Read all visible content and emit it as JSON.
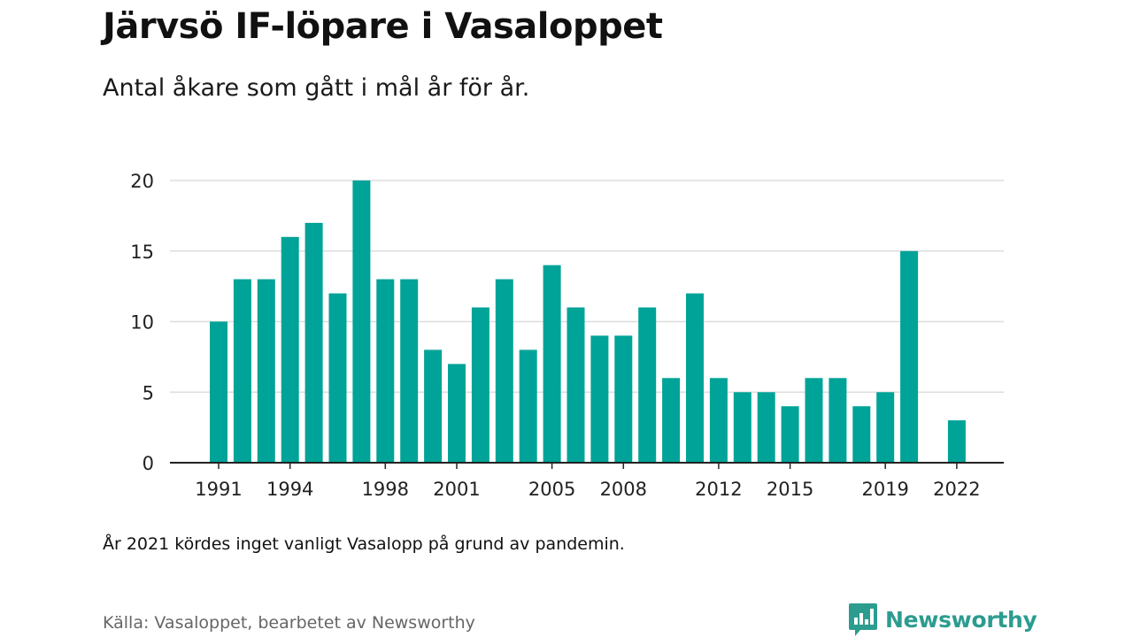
{
  "header": {
    "title": "Järvsö IF-löpare i Vasaloppet",
    "subtitle": "Antal åkare som gått i mål år för år."
  },
  "footer": {
    "note": "År 2021 kördes inget vanligt Vasalopp på grund av pandemin.",
    "source": "Källa: Vasaloppet, bearbetet av Newsworthy",
    "brand": "Newsworthy"
  },
  "colors": {
    "bar": "#00a398",
    "grid": "#dddddd",
    "axis": "#222222",
    "brand": "#2c9c8f"
  },
  "chart_data": {
    "type": "bar",
    "title": "Järvsö IF-löpare i Vasaloppet",
    "subtitle": "Antal åkare som gått i mål år för år.",
    "xlabel": "",
    "ylabel": "",
    "ylim": [
      0,
      20
    ],
    "yticks": [
      0,
      5,
      10,
      15,
      20
    ],
    "grid": true,
    "categories": [
      1991,
      1992,
      1993,
      1994,
      1995,
      1996,
      1997,
      1998,
      1999,
      2000,
      2001,
      2002,
      2003,
      2004,
      2005,
      2006,
      2007,
      2008,
      2009,
      2010,
      2011,
      2012,
      2013,
      2014,
      2015,
      2016,
      2017,
      2018,
      2019,
      2020,
      2021,
      2022
    ],
    "values": [
      10,
      13,
      13,
      16,
      17,
      12,
      20,
      13,
      13,
      8,
      7,
      11,
      13,
      8,
      14,
      11,
      9,
      9,
      11,
      6,
      12,
      6,
      5,
      5,
      4,
      6,
      6,
      4,
      5,
      15,
      null,
      3
    ],
    "xtick_labels": [
      "1991",
      "1994",
      "1998",
      "2001",
      "2005",
      "2008",
      "2012",
      "2015",
      "2019",
      "2022"
    ]
  }
}
